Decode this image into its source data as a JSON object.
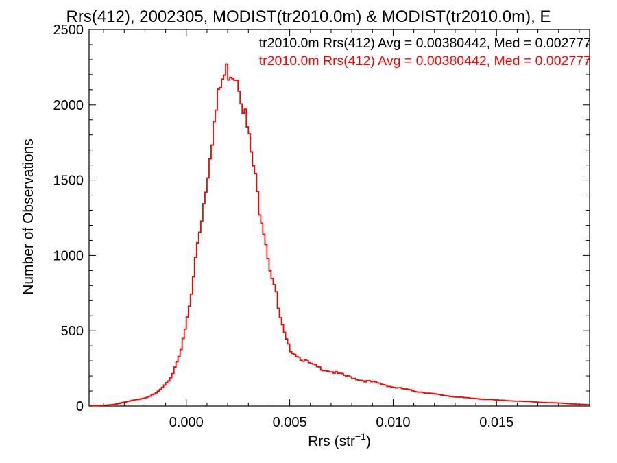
{
  "chart_data": {
    "type": "histogram",
    "title": "Rrs(412), 2002305, MODIST(tr2010.0m) & MODIST(tr2010.0m), E",
    "xlabel_main": "Rrs (str",
    "xlabel_sup": "−1",
    "xlabel_close": ")",
    "ylabel": "Number of Observations",
    "xlim": [
      -0.0047,
      0.0195
    ],
    "ylim": [
      0,
      2500
    ],
    "x_ticks": [
      0.0,
      0.005,
      0.01,
      0.015
    ],
    "x_tick_labels": [
      "0.000",
      "0.005",
      "0.010",
      "0.015"
    ],
    "y_ticks": [
      0,
      500,
      1000,
      1500,
      2000,
      2500
    ],
    "y_tick_labels": [
      "0",
      "500",
      "1000",
      "1500",
      "2000",
      "2500"
    ],
    "legend": [
      {
        "text": "tr2010.0m Rrs(412) Avg = 0.00380442, Med = 0.002777",
        "color": "#000000"
      },
      {
        "text": "tr2010.0m Rrs(412) Avg = 0.00380442, Med = 0.002777",
        "color": "#ff0000"
      }
    ],
    "series": [
      {
        "color": "#ff0000",
        "bin_width": 0.0001,
        "points": [
          [
            -0.0047,
            0
          ],
          [
            -0.004,
            5
          ],
          [
            -0.0035,
            10
          ],
          [
            -0.003,
            25
          ],
          [
            -0.0025,
            40
          ],
          [
            -0.002,
            55
          ],
          [
            -0.0015,
            80
          ],
          [
            -0.001,
            140
          ],
          [
            -0.0007,
            200
          ],
          [
            -0.0005,
            280
          ],
          [
            -0.0002,
            400
          ],
          [
            0.0,
            540
          ],
          [
            0.0003,
            780
          ],
          [
            0.0005,
            1050
          ],
          [
            0.0008,
            1300
          ],
          [
            0.001,
            1500
          ],
          [
            0.0012,
            1750
          ],
          [
            0.0015,
            2000
          ],
          [
            0.0017,
            2150
          ],
          [
            0.002,
            2230
          ],
          [
            0.0022,
            2240
          ],
          [
            0.0025,
            2200
          ],
          [
            0.0027,
            2050
          ],
          [
            0.003,
            1800
          ],
          [
            0.0033,
            1550
          ],
          [
            0.0035,
            1350
          ],
          [
            0.0038,
            1150
          ],
          [
            0.004,
            950
          ],
          [
            0.0043,
            780
          ],
          [
            0.0045,
            600
          ],
          [
            0.0048,
            450
          ],
          [
            0.005,
            380
          ],
          [
            0.0055,
            320
          ],
          [
            0.006,
            280
          ],
          [
            0.0065,
            250
          ],
          [
            0.007,
            230
          ],
          [
            0.0075,
            210
          ],
          [
            0.008,
            190
          ],
          [
            0.0085,
            170
          ],
          [
            0.009,
            160
          ],
          [
            0.0095,
            145
          ],
          [
            0.01,
            125
          ],
          [
            0.0105,
            115
          ],
          [
            0.011,
            100
          ],
          [
            0.0115,
            90
          ],
          [
            0.012,
            80
          ],
          [
            0.0125,
            70
          ],
          [
            0.013,
            62
          ],
          [
            0.0135,
            55
          ],
          [
            0.014,
            50
          ],
          [
            0.0145,
            45
          ],
          [
            0.015,
            40
          ],
          [
            0.0155,
            37
          ],
          [
            0.016,
            33
          ],
          [
            0.0165,
            30
          ],
          [
            0.017,
            26
          ],
          [
            0.0175,
            23
          ],
          [
            0.018,
            20
          ],
          [
            0.0185,
            16
          ],
          [
            0.019,
            12
          ],
          [
            0.0195,
            8
          ]
        ]
      }
    ]
  }
}
